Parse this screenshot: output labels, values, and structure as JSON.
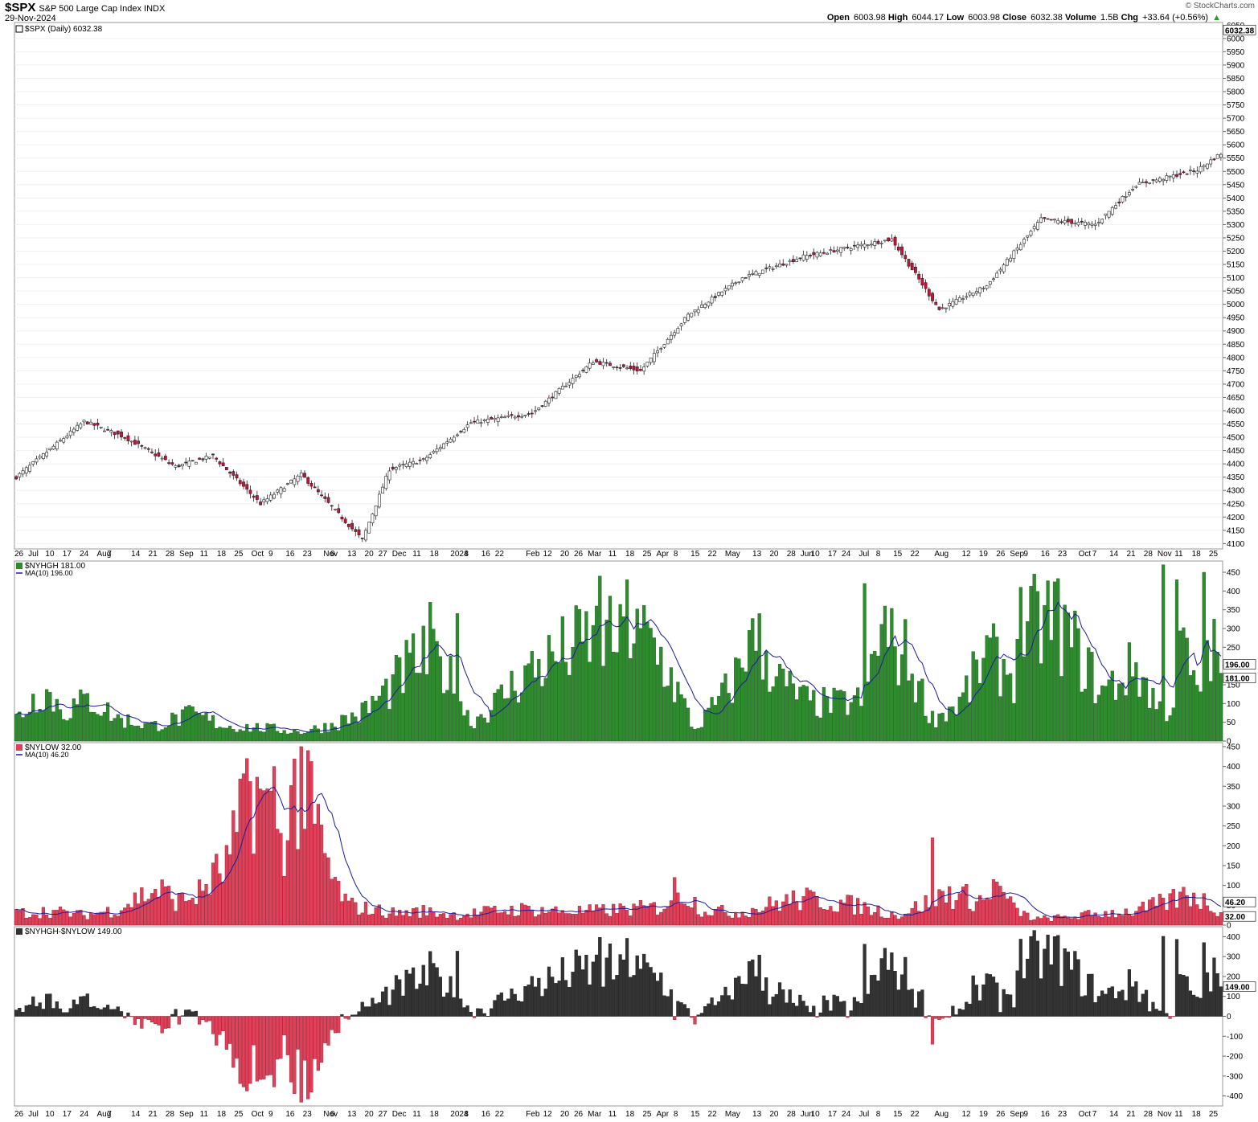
{
  "header": {
    "symbol": "$SPX",
    "description": "S&P 500 Large Cap Index",
    "exchange": "INDX",
    "date": "29-Nov-2024",
    "open_label": "Open",
    "open": "6003.98",
    "high_label": "High",
    "high": "6044.17",
    "low_label": "Low",
    "low": "6003.98",
    "close_label": "Close",
    "close": "6032.38",
    "volume_label": "Volume",
    "volume": "1.5B",
    "chg_label": "Chg",
    "chg": "+33.64 (+0.56%)",
    "brand": "© StockCharts.com"
  },
  "colors": {
    "up_fill": "#ffffff",
    "down_fill": "#d0103a",
    "nyhgh": "#2e8b2e",
    "nylow": "#e0405a",
    "net_pos": "#333333",
    "net_neg": "#e0405a",
    "ma": "#1a1aa0"
  },
  "chart_data": [
    {
      "type": "candlestick",
      "legend": "$SPX (Daily) 6032.38",
      "last_value_label": "6032.38",
      "ylim": [
        4080,
        6060
      ],
      "yticks": [
        4100,
        4150,
        4200,
        4250,
        4300,
        4350,
        4400,
        4450,
        4500,
        4550,
        4600,
        4650,
        4700,
        4750,
        4800,
        4850,
        4900,
        4950,
        5000,
        5050,
        5100,
        5150,
        5200,
        5250,
        5300,
        5350,
        5400,
        5450,
        5500,
        5550,
        5600,
        5650,
        5700,
        5750,
        5800,
        5850,
        5900,
        5950,
        6000
      ],
      "top_tick_label": "6050",
      "anchors": [
        [
          0,
          4350
        ],
        [
          20,
          4560
        ],
        [
          32,
          4500
        ],
        [
          47,
          4390
        ],
        [
          58,
          4430
        ],
        [
          72,
          4250
        ],
        [
          84,
          4360
        ],
        [
          102,
          4115
        ],
        [
          110,
          4380
        ],
        [
          120,
          4415
        ],
        [
          134,
          4555
        ],
        [
          152,
          4590
        ],
        [
          170,
          4785
        ],
        [
          184,
          4750
        ],
        [
          198,
          4960
        ],
        [
          214,
          5100
        ],
        [
          232,
          5180
        ],
        [
          258,
          5245
        ],
        [
          272,
          4980
        ],
        [
          286,
          5070
        ],
        [
          302,
          5320
        ],
        [
          318,
          5300
        ],
        [
          330,
          5450
        ],
        [
          348,
          5505
        ],
        [
          362,
          5630
        ],
        [
          374,
          5420
        ],
        [
          385,
          5160
        ],
        [
          398,
          5545
        ],
        [
          412,
          5630
        ],
        [
          424,
          5420
        ],
        [
          448,
          5730
        ],
        [
          458,
          5710
        ],
        [
          475,
          5860
        ],
        [
          486,
          5820
        ],
        [
          493,
          5720
        ],
        [
          498,
          6000
        ],
        [
          504,
          5980
        ],
        [
          510,
          5875
        ],
        [
          519,
          6032
        ]
      ],
      "x_labels": [
        {
          "i": 0,
          "t": "26"
        },
        {
          "i": 4,
          "t": "Jul"
        },
        {
          "i": 9,
          "t": "10"
        },
        {
          "i": 14,
          "t": "17"
        },
        {
          "i": 19,
          "t": "24"
        },
        {
          "i": 24,
          "t": "Aug"
        },
        {
          "i": 27,
          "t": "7"
        },
        {
          "i": 34,
          "t": "14"
        },
        {
          "i": 39,
          "t": "21"
        },
        {
          "i": 44,
          "t": "28"
        },
        {
          "i": 48,
          "t": "Sep"
        },
        {
          "i": 54,
          "t": "11"
        },
        {
          "i": 59,
          "t": "18"
        },
        {
          "i": 64,
          "t": "25"
        },
        {
          "i": 69,
          "t": "Oct"
        },
        {
          "i": 74,
          "t": "9"
        },
        {
          "i": 79,
          "t": "16"
        },
        {
          "i": 84,
          "t": "23"
        },
        {
          "i": 90,
          "t": "Nov"
        },
        {
          "i": 92,
          "t": "6"
        },
        {
          "i": 97,
          "t": "13"
        },
        {
          "i": 102,
          "t": "20"
        },
        {
          "i": 106,
          "t": "27"
        },
        {
          "i": 110,
          "t": "Dec"
        },
        {
          "i": 116,
          "t": "11"
        },
        {
          "i": 121,
          "t": "18"
        },
        {
          "i": 127,
          "t": "2024"
        },
        {
          "i": 131,
          "t": "8"
        },
        {
          "i": 136,
          "t": "16"
        },
        {
          "i": 140,
          "t": "22"
        },
        {
          "i": 149,
          "t": "Feb"
        },
        {
          "i": 154,
          "t": "12"
        },
        {
          "i": 159,
          "t": "20"
        },
        {
          "i": 163,
          "t": "26"
        },
        {
          "i": 167,
          "t": "Mar"
        },
        {
          "i": 173,
          "t": "11"
        },
        {
          "i": 178,
          "t": "18"
        },
        {
          "i": 183,
          "t": "25"
        },
        {
          "i": 187,
          "t": "Apr"
        },
        {
          "i": 192,
          "t": "8"
        },
        {
          "i": 197,
          "t": "15"
        },
        {
          "i": 202,
          "t": "22"
        },
        {
          "i": 207,
          "t": "May"
        },
        {
          "i": 215,
          "t": "13"
        },
        {
          "i": 220,
          "t": "20"
        },
        {
          "i": 225,
          "t": "28"
        },
        {
          "i": 229,
          "t": "Jun"
        },
        {
          "i": 232,
          "t": "10"
        },
        {
          "i": 237,
          "t": "17"
        },
        {
          "i": 241,
          "t": "24"
        },
        {
          "i": 246,
          "t": "Jul"
        },
        {
          "i": 251,
          "t": "8"
        },
        {
          "i": 256,
          "t": "15"
        },
        {
          "i": 261,
          "t": "22"
        },
        {
          "i": 268,
          "t": "Aug"
        },
        {
          "i": 276,
          "t": "12"
        },
        {
          "i": 281,
          "t": "19"
        },
        {
          "i": 286,
          "t": "26"
        },
        {
          "i": 290,
          "t": "Sep"
        },
        {
          "i": 294,
          "t": "9"
        },
        {
          "i": 299,
          "t": "16"
        },
        {
          "i": 304,
          "t": "23"
        },
        {
          "i": 310,
          "t": "Oct"
        },
        {
          "i": 314,
          "t": "7"
        },
        {
          "i": 319,
          "t": "14"
        },
        {
          "i": 324,
          "t": "21"
        },
        {
          "i": 329,
          "t": "28"
        },
        {
          "i": 333,
          "t": "Nov"
        },
        {
          "i": 338,
          "t": "11"
        },
        {
          "i": 343,
          "t": "18"
        },
        {
          "i": 348,
          "t": "25"
        }
      ]
    },
    {
      "type": "bar",
      "legend": "$NYHGH 181.00",
      "ma_legend": "MA(10) 196.00",
      "last_value_label": "181.00",
      "ma_value_label": "196.00",
      "ylim": [
        0,
        480
      ],
      "yticks": [
        0,
        50,
        100,
        150,
        200,
        250,
        300,
        350,
        400,
        450
      ],
      "anchors": [
        [
          0,
          60
        ],
        [
          8,
          140
        ],
        [
          14,
          80
        ],
        [
          22,
          110
        ],
        [
          30,
          60
        ],
        [
          40,
          40
        ],
        [
          52,
          70
        ],
        [
          62,
          40
        ],
        [
          72,
          35
        ],
        [
          84,
          25
        ],
        [
          92,
          40
        ],
        [
          102,
          75
        ],
        [
          110,
          140
        ],
        [
          118,
          220
        ],
        [
          126,
          200
        ],
        [
          134,
          50
        ],
        [
          140,
          90
        ],
        [
          150,
          180
        ],
        [
          160,
          230
        ],
        [
          170,
          280
        ],
        [
          180,
          260
        ],
        [
          186,
          280
        ],
        [
          192,
          190
        ],
        [
          200,
          30
        ],
        [
          210,
          140
        ],
        [
          218,
          270
        ],
        [
          226,
          150
        ],
        [
          234,
          100
        ],
        [
          242,
          100
        ],
        [
          250,
          110
        ],
        [
          254,
          280
        ],
        [
          262,
          230
        ],
        [
          270,
          60
        ],
        [
          278,
          100
        ],
        [
          286,
          230
        ],
        [
          294,
          180
        ],
        [
          300,
          310
        ],
        [
          306,
          330
        ],
        [
          314,
          220
        ],
        [
          320,
          130
        ],
        [
          326,
          170
        ],
        [
          330,
          200
        ],
        [
          336,
          100
        ],
        [
          340,
          80
        ],
        [
          344,
          260
        ],
        [
          348,
          110
        ],
        [
          352,
          250
        ],
        [
          356,
          181
        ]
      ],
      "spikes": [
        [
          122,
          370
        ],
        [
          130,
          340
        ],
        [
          172,
          440
        ],
        [
          180,
          430
        ],
        [
          216,
          295
        ],
        [
          250,
          420
        ],
        [
          256,
          360
        ],
        [
          296,
          410
        ],
        [
          338,
          470
        ],
        [
          342,
          430
        ],
        [
          350,
          450
        ]
      ]
    },
    {
      "type": "bar",
      "legend": "$NYLOW 32.00",
      "ma_legend": "MA(10) 46.20",
      "last_value_label": "32.00",
      "ma_value_label": "46.20",
      "ylim": [
        0,
        460
      ],
      "yticks": [
        0,
        50,
        100,
        150,
        200,
        250,
        300,
        350,
        400,
        450
      ],
      "anchors": [
        [
          0,
          30
        ],
        [
          10,
          35
        ],
        [
          20,
          25
        ],
        [
          30,
          40
        ],
        [
          36,
          70
        ],
        [
          42,
          90
        ],
        [
          48,
          60
        ],
        [
          54,
          80
        ],
        [
          58,
          120
        ],
        [
          62,
          150
        ],
        [
          66,
          250
        ],
        [
          70,
          350
        ],
        [
          74,
          280
        ],
        [
          78,
          200
        ],
        [
          82,
          330
        ],
        [
          86,
          320
        ],
        [
          90,
          200
        ],
        [
          94,
          100
        ],
        [
          98,
          50
        ],
        [
          104,
          40
        ],
        [
          112,
          30
        ],
        [
          120,
          35
        ],
        [
          130,
          25
        ],
        [
          140,
          35
        ],
        [
          150,
          40
        ],
        [
          160,
          35
        ],
        [
          170,
          35
        ],
        [
          180,
          40
        ],
        [
          190,
          45
        ],
        [
          196,
          90
        ],
        [
          202,
          40
        ],
        [
          212,
          30
        ],
        [
          220,
          45
        ],
        [
          226,
          60
        ],
        [
          232,
          65
        ],
        [
          240,
          60
        ],
        [
          250,
          45
        ],
        [
          260,
          25
        ],
        [
          268,
          55
        ],
        [
          274,
          80
        ],
        [
          280,
          70
        ],
        [
          286,
          60
        ],
        [
          290,
          90
        ],
        [
          294,
          40
        ],
        [
          300,
          15
        ],
        [
          310,
          20
        ],
        [
          320,
          30
        ],
        [
          330,
          35
        ],
        [
          340,
          60
        ],
        [
          346,
          80
        ],
        [
          352,
          50
        ],
        [
          356,
          32
        ]
      ],
      "spikes": [
        [
          68,
          420
        ],
        [
          76,
          400
        ],
        [
          84,
          450
        ],
        [
          86,
          440
        ],
        [
          92,
          170
        ],
        [
          194,
          120
        ],
        [
          270,
          220
        ],
        [
          288,
          115
        ]
      ]
    },
    {
      "type": "bar",
      "legend": "$NYHGH-$NYLOW 149.00",
      "last_value_label": "149.00",
      "ylim": [
        -450,
        450
      ],
      "yticks": [
        -400,
        -300,
        -200,
        -100,
        0,
        100,
        200,
        300,
        400
      ],
      "tick_labels": [
        "-400",
        "-300",
        "-200",
        "-100",
        "0",
        "100",
        "200",
        "300",
        "400"
      ],
      "x_labels_ref": "same as price panel"
    }
  ]
}
